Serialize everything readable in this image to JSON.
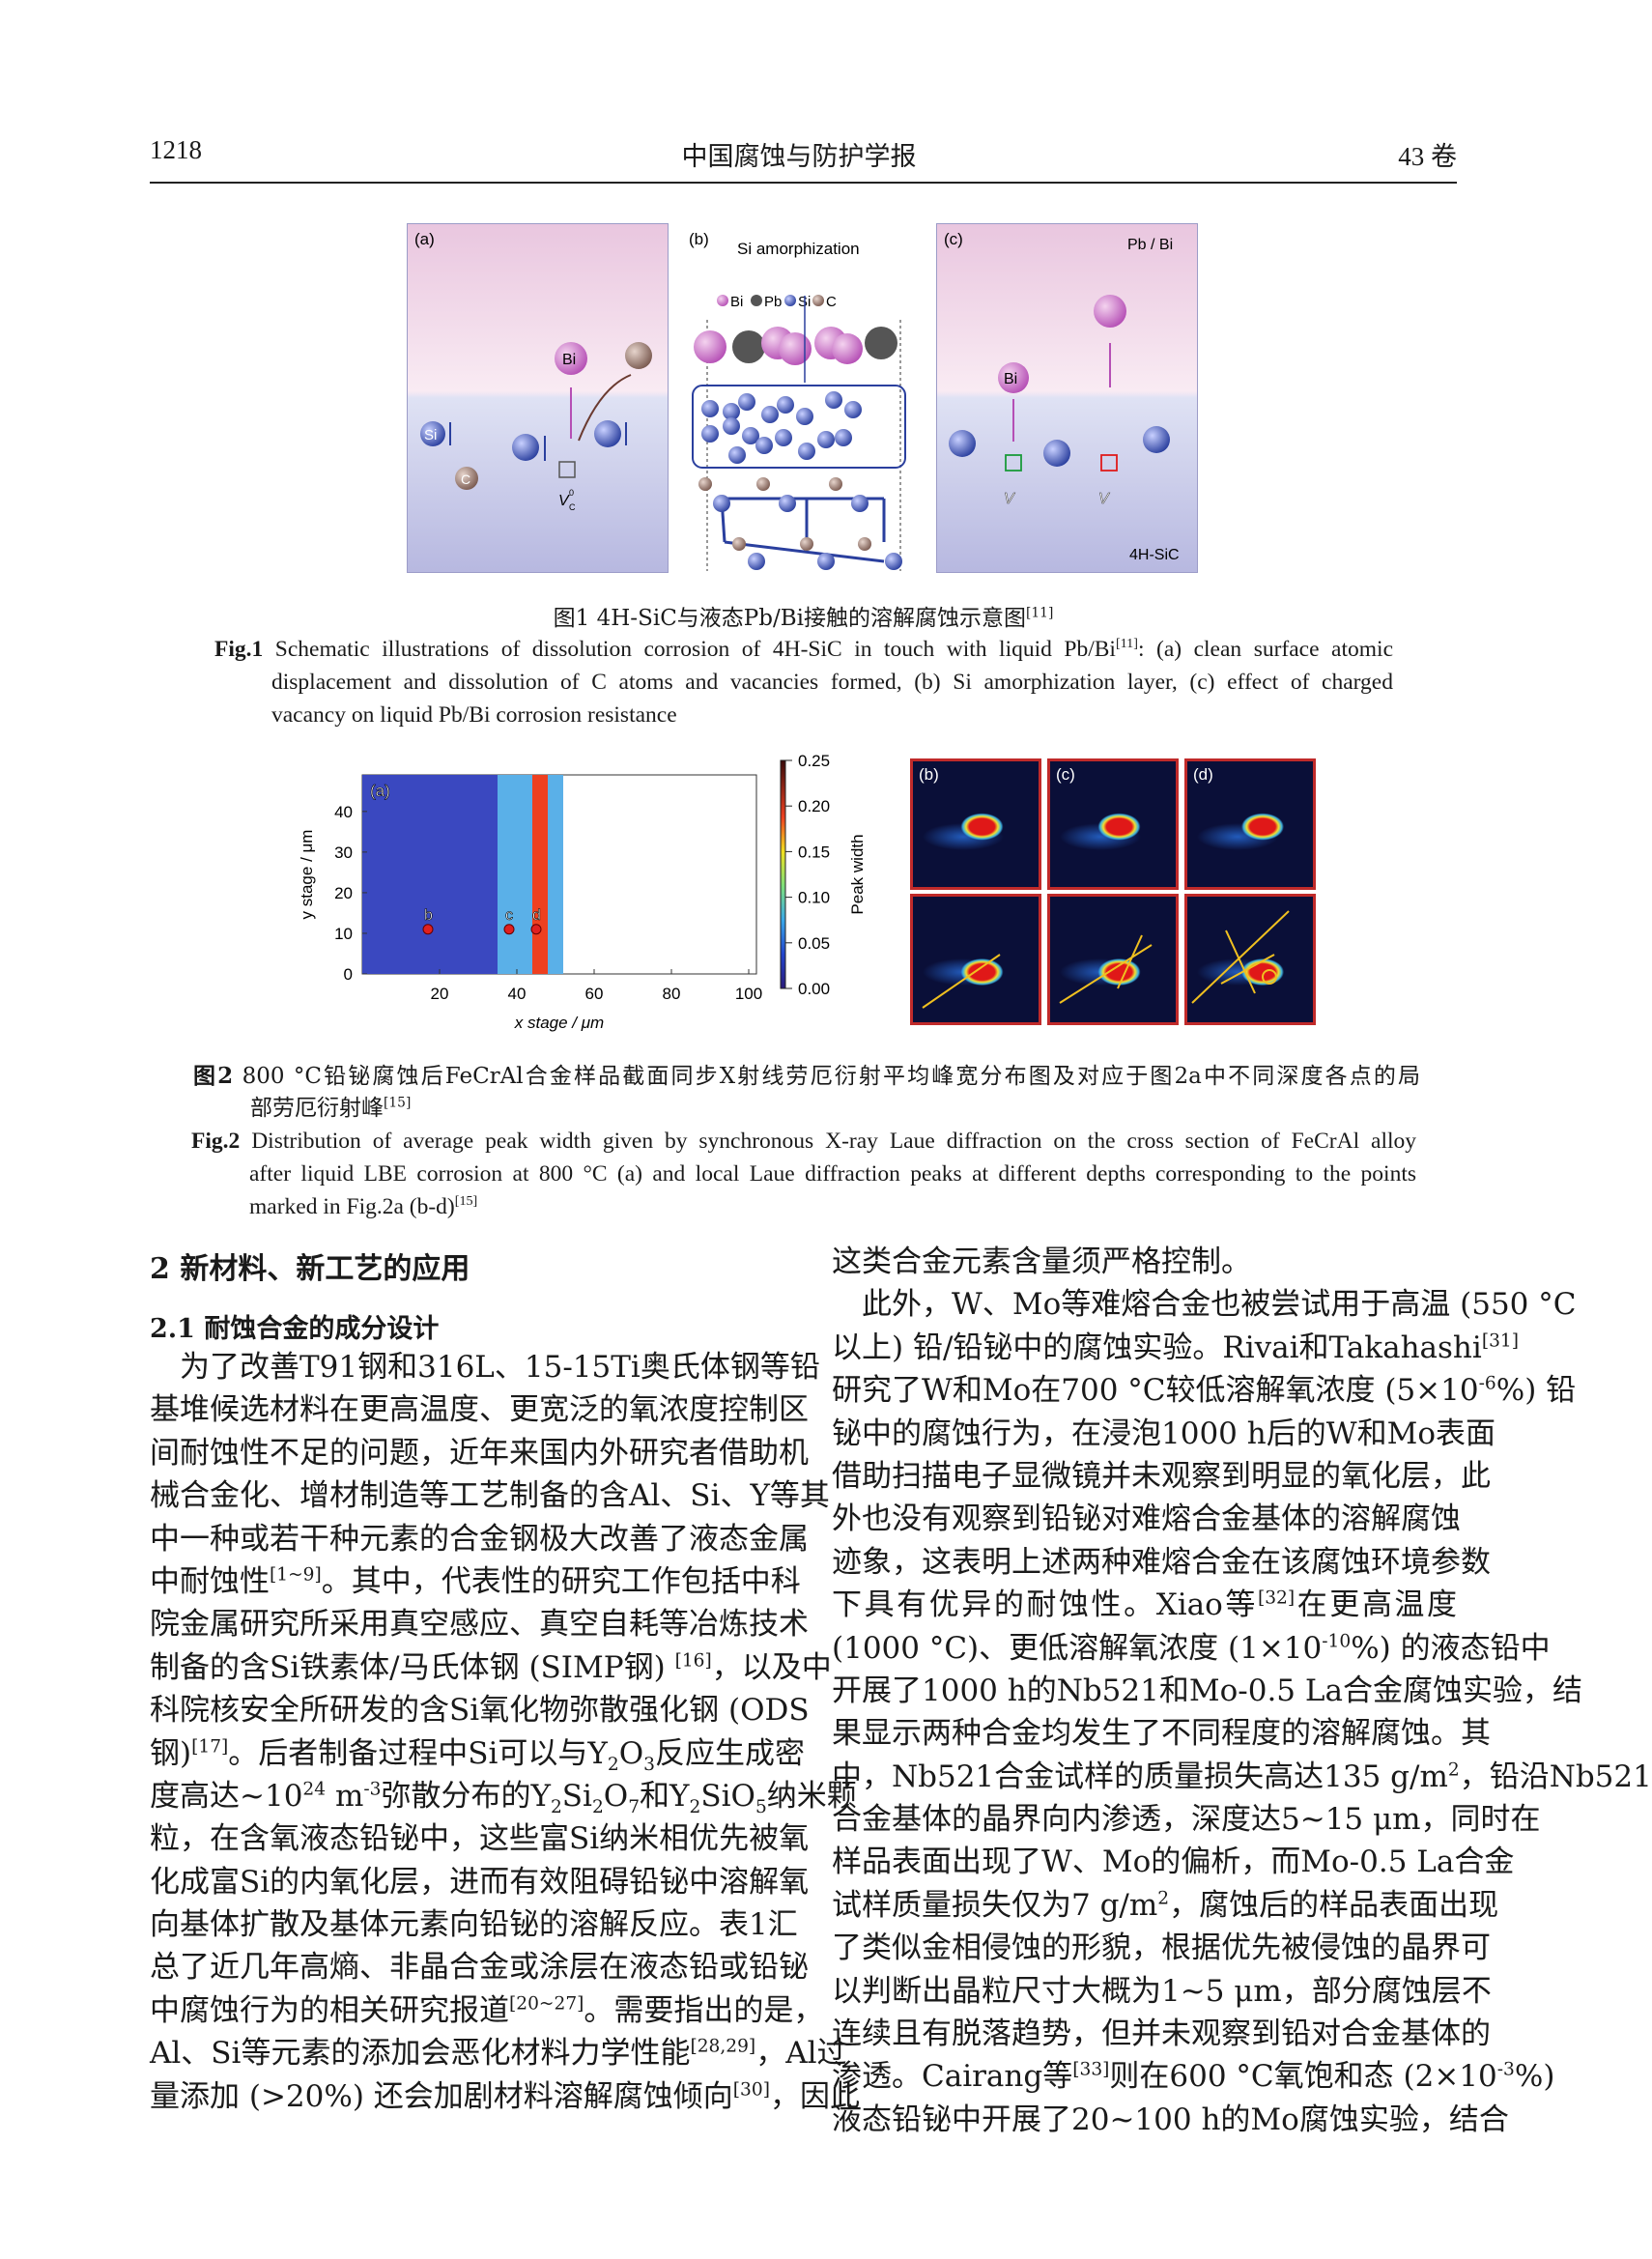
{
  "header": {
    "page_number": "1218",
    "journal": "中国腐蚀与防护学报",
    "volume": "43 卷"
  },
  "fig1": {
    "panel_a": {
      "label": "(a)",
      "atoms": [
        "Bi",
        "Si",
        "C"
      ],
      "vacancy": "V",
      "vacancy_sub": "C",
      "vacancy_sup": "0"
    },
    "panel_b": {
      "label": "(b)",
      "title": "Si amorphization",
      "legend": [
        "Bi",
        "Pb",
        "Si",
        "C"
      ]
    },
    "panel_c": {
      "label": "(c)",
      "top_label": "Pb / Bi",
      "bottom_label": "4H-SiC",
      "atom": "Bi",
      "vacancy": "V",
      "vacancy_sub": "C",
      "vacancy_sup_plus": "+",
      "vacancy_sup_minus": "−"
    },
    "colors": {
      "bi": "#b04fb8",
      "pb": "#444444",
      "si": "#2a3f9e",
      "c": "#8a5a35",
      "liquid_bg": "#f3dcea",
      "solid_bg": "#c9cbea"
    },
    "caption_cn": "图1 4H-SiC与液态Pb/Bi接触的溶解腐蚀示意图",
    "caption_cn_ref": "[11]",
    "caption_en_label": "Fig.1",
    "caption_en_1": "Schematic illustrations of dissolution corrosion of 4H-SiC in touch with liquid Pb/Bi",
    "caption_en_ref": "[11]",
    "caption_en_2": ": (a) clean surface atomic",
    "caption_en_3": "displacement and dissolution of C atoms and vacancies formed, (b) Si amorphization layer, (c) effect of charged",
    "caption_en_4": "vacancy on liquid Pb/Bi corrosion resistance"
  },
  "chart_data": {
    "type": "heatmap",
    "panel_label": "(a)",
    "xlabel": "x stage / μm",
    "ylabel": "y stage / μm",
    "xticks": [
      20,
      40,
      60,
      80,
      100
    ],
    "yticks": [
      0,
      10,
      20,
      30,
      40
    ],
    "xlim": [
      0,
      102
    ],
    "ylim": [
      0,
      49
    ],
    "colorbar": {
      "label": "Peak width",
      "ticks": [
        "0.00",
        "0.05",
        "0.10",
        "0.15",
        "0.20",
        "0.25"
      ],
      "range": [
        0,
        0.25
      ],
      "colormap": "jet"
    },
    "regions": [
      {
        "x_range": [
          0,
          35
        ],
        "peak_width": 0.03
      },
      {
        "x_range": [
          35,
          44
        ],
        "peak_width": 0.07
      },
      {
        "x_range": [
          44,
          48
        ],
        "peak_width": 0.17
      },
      {
        "x_range": [
          48,
          52
        ],
        "peak_width": 0.08
      },
      {
        "x_range": [
          52,
          102
        ],
        "peak_width": null
      }
    ],
    "points": [
      {
        "label": "b",
        "x": 17,
        "y": 11
      },
      {
        "label": "c",
        "x": 38,
        "y": 11
      },
      {
        "label": "d",
        "x": 45,
        "y": 11
      }
    ],
    "grid": false
  },
  "fig2": {
    "laue_labels": [
      "(b)",
      "(c)",
      "(d)"
    ],
    "caption_cn_label": "图2",
    "caption_cn_1": "800 °C铅铋腐蚀后FeCrAl合金样品截面同步X射线劳厄衍射平均峰宽分布图及对应于图2a中不同深度各点的局",
    "caption_cn_2": "部劳厄衍射峰",
    "caption_cn_ref": "[15]",
    "caption_en_label": "Fig.2",
    "caption_en_1": "Distribution of average peak width given by synchronous X-ray Laue diffraction on the cross section of FeCrAl alloy",
    "caption_en_2": "after liquid LBE corrosion at 800 °C (a) and local Laue diffraction peaks at different depths corresponding to the points",
    "caption_en_3": "marked in Fig.2a (b-d)",
    "caption_en_ref": "[15]"
  },
  "section": {
    "heading": "2  新材料、新工艺的应用",
    "subheading": "2.1  耐蚀合金的成分设计"
  },
  "left_column": [
    [
      "　为了改善T91钢和316L、15-15Ti奥氏体钢等铅"
    ],
    [
      "基堆候选材料在更高温度、更宽泛的氧浓度控制区"
    ],
    [
      "间耐蚀性不足的问题，近年来国内外研究者借助机"
    ],
    [
      "械合金化、增材制造等工艺制备的含Al、Si、Y等其"
    ],
    [
      "中一种或若干种元素的合金钢极大改善了液态金属"
    ],
    [
      "中耐蚀性",
      {
        "sup": "[1~9]"
      },
      "。其中，代表性的研究工作包括中科"
    ],
    [
      "院金属研究所采用真空感应、真空自耗等冶炼技术"
    ],
    [
      "制备的含Si铁素体/马氏体钢 (SIMP钢) ",
      {
        "sup": "[16]"
      },
      "，以及中"
    ],
    [
      "科院核安全所研发的含Si氧化物弥散强化钢 (ODS"
    ],
    [
      "钢)",
      {
        "sup": "[17]"
      },
      "。后者制备过程中Si可以与Y",
      {
        "sub": "2"
      },
      "O",
      {
        "sub": "3"
      },
      "反应生成密"
    ],
    [
      "度高达~10",
      {
        "sup": "24"
      },
      " m",
      {
        "sup": "-3"
      },
      "弥散分布的Y",
      {
        "sub": "2"
      },
      "Si",
      {
        "sub": "2"
      },
      "O",
      {
        "sub": "7"
      },
      "和Y",
      {
        "sub": "2"
      },
      "SiO",
      {
        "sub": "5"
      },
      "纳米颗"
    ],
    [
      "粒，在含氧液态铅铋中，这些富Si纳米相优先被氧"
    ],
    [
      "化成富Si的内氧化层，进而有效阻碍铅铋中溶解氧"
    ],
    [
      "向基体扩散及基体元素向铅铋的溶解反应。表1汇"
    ],
    [
      "总了近几年高熵、非晶合金或涂层在液态铅或铅铋"
    ],
    [
      "中腐蚀行为的相关研究报道",
      {
        "sup": "[20~27]"
      },
      "。需要指出的是，"
    ],
    [
      "Al、Si等元素的添加会恶化材料力学性能",
      {
        "sup": "[28,29]"
      },
      "，Al过"
    ],
    [
      "量添加 (>20%) 还会加剧材料溶解腐蚀倾向",
      {
        "sup": "[30]"
      },
      "，因此"
    ]
  ],
  "right_column": [
    [
      "这类合金元素含量须严格控制。"
    ],
    [
      "　此外，W、Mo等难熔合金也被尝试用于高温 (550 °C"
    ],
    [
      "以上) 铅/铅铋中的腐蚀实验。Rivai和Takahashi",
      {
        "sup": "[31]"
      }
    ],
    [
      "研究了W和Mo在700 °C较低溶解氧浓度 (5×10",
      {
        "sup": "-6"
      },
      "%) 铅"
    ],
    [
      "铋中的腐蚀行为，在浸泡1000 h后的W和Mo表面"
    ],
    [
      "借助扫描电子显微镜并未观察到明显的氧化层，此"
    ],
    [
      "外也没有观察到铅铋对难熔合金基体的溶解腐蚀"
    ],
    [
      "迹象，这表明上述两种难熔合金在该腐蚀环境参数"
    ],
    [
      "下具有优异的耐蚀性。Xiao等",
      {
        "sup": "[32]"
      },
      "在更高温度"
    ],
    [
      "(1000 °C)、更低溶解氧浓度 (1×10",
      {
        "sup": "-10"
      },
      "%) 的液态铅中"
    ],
    [
      "开展了1000 h的Nb521和Mo-0.5 La合金腐蚀实验，结"
    ],
    [
      "果显示两种合金均发生了不同程度的溶解腐蚀。其"
    ],
    [
      "中，Nb521合金试样的质量损失高达135 g/m",
      {
        "sup": "2"
      },
      "，铅沿Nb521"
    ],
    [
      "合金基体的晶界向内渗透，深度达5~15 μm，同时在"
    ],
    [
      "样品表面出现了W、Mo的偏析，而Mo-0.5 La合金"
    ],
    [
      "试样质量损失仅为7 g/m",
      {
        "sup": "2"
      },
      "，腐蚀后的样品表面出现"
    ],
    [
      "了类似金相侵蚀的形貌，根据优先被侵蚀的晶界可"
    ],
    [
      "以判断出晶粒尺寸大概为1~5 μm，部分腐蚀层不"
    ],
    [
      "连续且有脱落趋势，但并未观察到铅对合金基体的"
    ],
    [
      "渗透。Cairang等",
      {
        "sup": "[33]"
      },
      "则在600 °C氧饱和态 (2×10",
      {
        "sup": "-3"
      },
      "%)"
    ],
    [
      "液态铅铋中开展了20~100 h的Mo腐蚀实验，结合"
    ]
  ]
}
